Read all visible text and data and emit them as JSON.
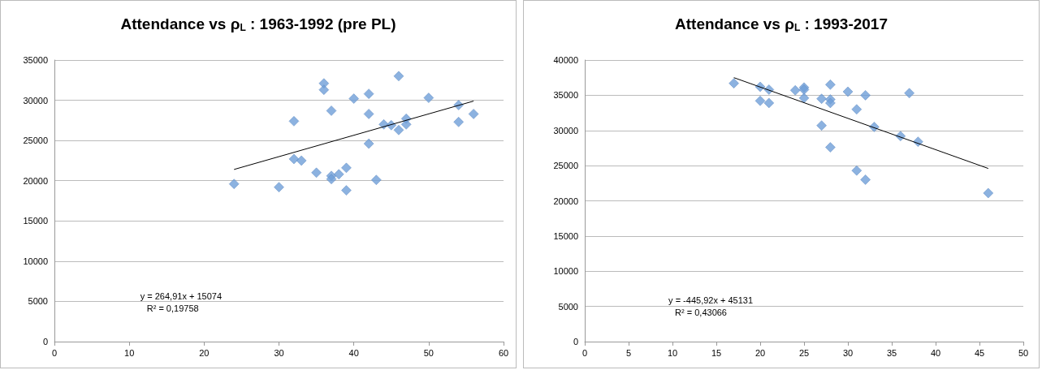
{
  "chart_data": [
    {
      "type": "scatter",
      "title": "Attendance vs ρ$_{L}$ : 1963-1992 (pre PL)",
      "marker": "diamond",
      "grid": "y",
      "xlim": [
        0,
        60
      ],
      "xticks": [
        0,
        10,
        20,
        30,
        40,
        50,
        60
      ],
      "ylim": [
        0,
        35000
      ],
      "yticks": [
        0,
        5000,
        10000,
        15000,
        20000,
        25000,
        30000,
        35000
      ],
      "annotations": [
        "y = 264,91x + 15074",
        "R² = 0,19758"
      ],
      "series": [
        {
          "color": "#6f9fd8",
          "x": [
            24,
            30,
            32,
            32,
            33,
            35,
            36,
            36,
            37,
            37,
            37,
            38,
            39,
            39,
            40,
            42,
            42,
            42,
            43,
            44,
            45,
            46,
            46,
            47,
            47,
            50,
            54,
            54,
            56
          ],
          "values": [
            19600,
            19200,
            27400,
            22700,
            22500,
            21000,
            32100,
            31300,
            28700,
            20600,
            20200,
            20800,
            21600,
            18800,
            30200,
            30800,
            28300,
            24600,
            20100,
            27000,
            26900,
            26300,
            33000,
            27700,
            27000,
            30300,
            29400,
            27300,
            28300
          ]
        },
        {
          "type": "line",
          "marker": "none",
          "color": "#000000",
          "x": [
            24,
            56
          ],
          "values": [
            21400,
            29900
          ]
        }
      ]
    },
    {
      "type": "scatter",
      "title": "Attendance vs ρ$_{L}$ : 1993-2017",
      "marker": "diamond",
      "grid": "y",
      "xlim": [
        0,
        50
      ],
      "xticks": [
        0,
        5,
        10,
        15,
        20,
        25,
        30,
        35,
        40,
        45,
        50
      ],
      "ylim": [
        0,
        40000
      ],
      "yticks": [
        0,
        5000,
        10000,
        15000,
        20000,
        25000,
        30000,
        35000,
        40000
      ],
      "annotations": [
        "y = -445,92x + 45131",
        "R² = 0,43066"
      ],
      "series": [
        {
          "color": "#6f9fd8",
          "x": [
            17,
            20,
            20,
            21,
            21,
            24,
            25,
            25,
            25,
            27,
            27,
            28,
            28,
            28,
            28,
            30,
            31,
            31,
            32,
            32,
            33,
            36,
            37,
            38,
            46
          ],
          "values": [
            36700,
            36200,
            34200,
            35800,
            33900,
            35700,
            36100,
            35800,
            34600,
            34500,
            30700,
            36500,
            34400,
            33900,
            27600,
            35500,
            33000,
            24300,
            35000,
            23000,
            30500,
            29200,
            35300,
            28400,
            21100
          ]
        },
        {
          "type": "line",
          "marker": "none",
          "color": "#000000",
          "x": [
            17,
            46
          ],
          "values": [
            37500,
            24600
          ]
        }
      ]
    }
  ]
}
